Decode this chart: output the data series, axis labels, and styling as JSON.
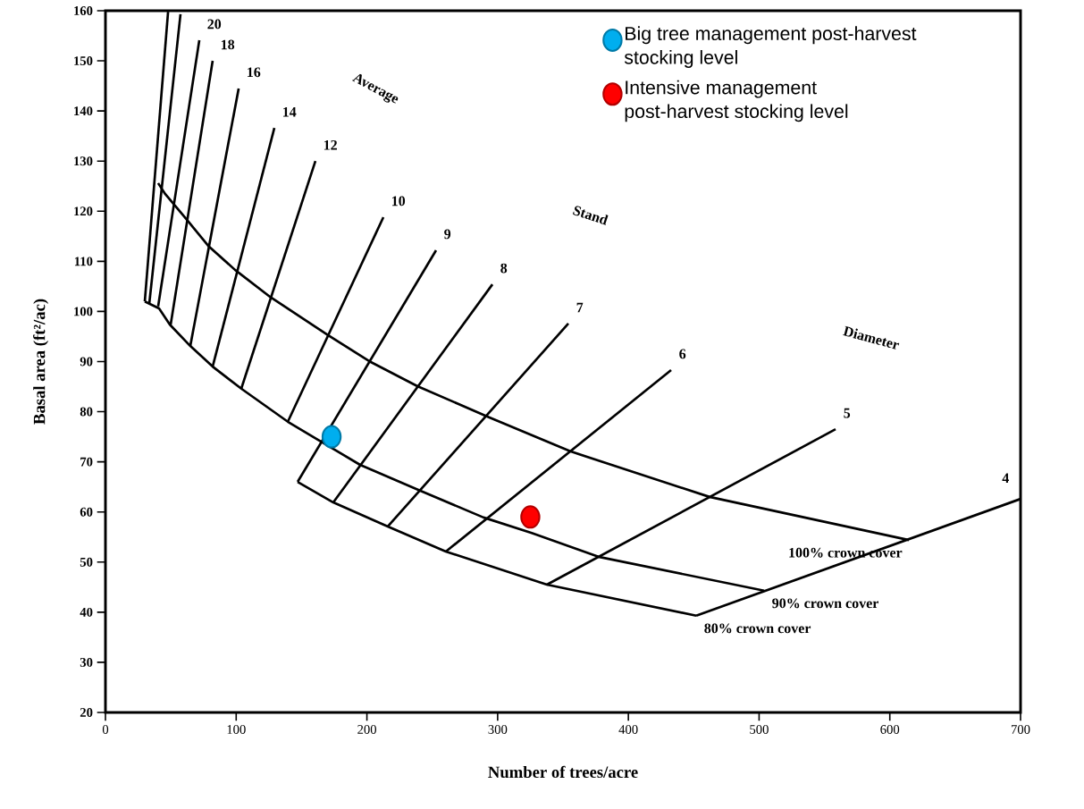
{
  "chart_data": {
    "type": "line",
    "xlabel": "Number of trees/acre",
    "ylabel": "Basal area (ft²/ac)",
    "xlim": [
      0,
      700
    ],
    "ylim": [
      20,
      160
    ],
    "xticks": [
      0,
      100,
      200,
      300,
      400,
      500,
      600,
      700
    ],
    "yticks": [
      20,
      30,
      40,
      50,
      60,
      70,
      80,
      90,
      100,
      110,
      120,
      130,
      140,
      150,
      160
    ],
    "legend": "top right",
    "marker": "none",
    "line_style": "solid",
    "annotations": [
      "Average",
      "Stand",
      "Diameter"
    ],
    "series": [
      {
        "color": "#000000",
        "x": [
          30.1,
          47.9
        ],
        "values": [
          102.0,
          159.8
        ]
      },
      {
        "color": "#000000",
        "x": [
          33.5,
          57.4
        ],
        "values": [
          101.5,
          159.3
        ]
      },
      {
        "name": "20",
        "color": "#000000",
        "x": [
          40.3,
          71.8
        ],
        "values": [
          101.0,
          154.1
        ]
      },
      {
        "name": "18",
        "color": "#000000",
        "x": [
          49.9,
          82.0
        ],
        "values": [
          97.4,
          150.0
        ]
      },
      {
        "name": "16",
        "color": "#000000",
        "x": [
          64.9,
          101.9
        ],
        "values": [
          93.1,
          144.5
        ]
      },
      {
        "name": "14",
        "color": "#000000",
        "x": [
          82.0,
          129.2
        ],
        "values": [
          89.0,
          136.6
        ]
      },
      {
        "name": "12",
        "color": "#000000",
        "x": [
          103.9,
          160.6
        ],
        "values": [
          84.6,
          130.0
        ]
      },
      {
        "name": "10",
        "color": "#000000",
        "x": [
          139.5,
          212.6
        ],
        "values": [
          78.0,
          118.8
        ]
      },
      {
        "name": "9",
        "color": "#000000",
        "x": [
          147.0,
          252.9
        ],
        "values": [
          66.0,
          112.2
        ]
      },
      {
        "name": "8",
        "color": "#000000",
        "x": [
          174.3,
          296.0
        ],
        "values": [
          61.9,
          105.4
        ]
      },
      {
        "name": "7",
        "color": "#000000",
        "x": [
          216.0,
          354.1
        ],
        "values": [
          57.1,
          97.6
        ]
      },
      {
        "name": "6",
        "color": "#000000",
        "x": [
          260.4,
          432.7
        ],
        "values": [
          52.1,
          88.3
        ]
      },
      {
        "name": "5",
        "color": "#000000",
        "x": [
          337.7,
          558.5
        ],
        "values": [
          45.5,
          76.5
        ]
      },
      {
        "name": "4",
        "color": "#000000",
        "x": [
          451.9,
          700
        ],
        "values": [
          39.3,
          62.6
        ]
      },
      {
        "name": "100% crown cover",
        "color": "#000000",
        "x": [
          40.3,
          45.8,
          62.9,
          78.6,
          99.1,
          126.5,
          170.2,
          203.0,
          238.6,
          293.3,
          355.5,
          462.1,
          614.6
        ],
        "values": [
          125.6,
          123.4,
          118.1,
          113.1,
          108.3,
          102.8,
          95.3,
          89.9,
          85.1,
          78.9,
          72.1,
          63.0,
          54.4
        ]
      },
      {
        "name": "90% crown cover",
        "color": "#000000",
        "x": [
          30.1,
          41.0,
          49.2,
          64.9,
          82.0,
          103.9,
          139.5,
          161.3,
          194.8,
          239.3,
          289.2,
          326.1,
          378.0,
          503.8
        ],
        "values": [
          102.0,
          100.6,
          97.4,
          93.1,
          89.0,
          84.6,
          78.0,
          74.6,
          69.4,
          64.4,
          58.9,
          55.8,
          51.0,
          44.3
        ]
      },
      {
        "name": "80% crown cover",
        "color": "#000000",
        "x": [
          147.0,
          174.3,
          216.0,
          260.4,
          337.7,
          451.9
        ],
        "values": [
          66.0,
          61.9,
          57.1,
          52.1,
          45.5,
          39.3
        ]
      },
      {
        "type": "scatter",
        "marker": "circle",
        "name": "Big tree management post-harvest stocking level",
        "color": "#00aeef",
        "x": [
          173
        ],
        "values": [
          75
        ]
      },
      {
        "type": "scatter",
        "marker": "circle",
        "name": "Intensive management post-harvest stocking level",
        "color": "#ff0000",
        "x": [
          325
        ],
        "values": [
          59
        ]
      }
    ]
  }
}
